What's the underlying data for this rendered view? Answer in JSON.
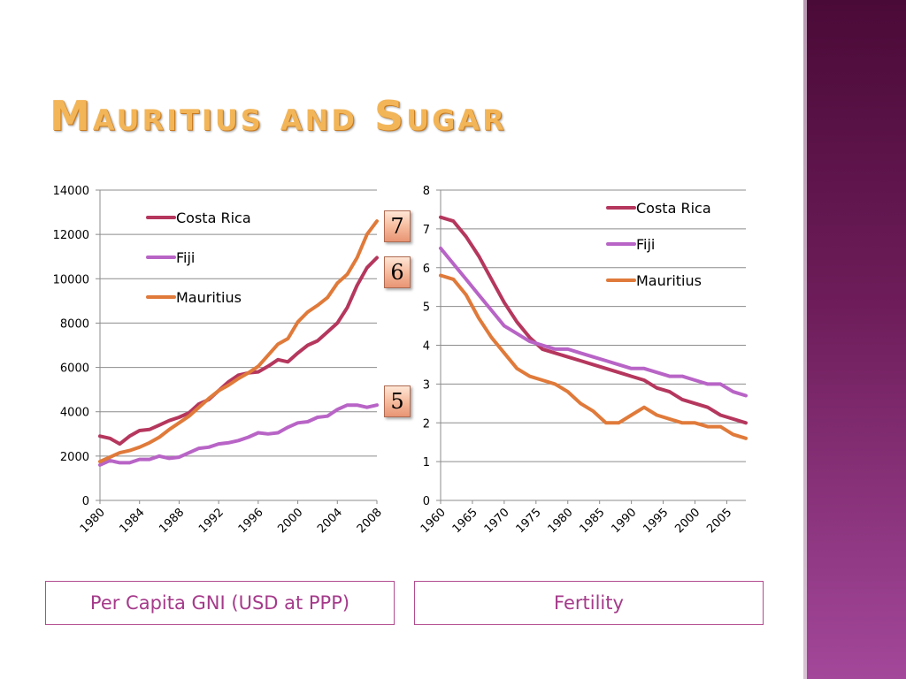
{
  "slide": {
    "title": "Mauritius and Sugar",
    "markers": [
      "7",
      "6",
      "5"
    ],
    "accent_colors": {
      "title": "#f2b558",
      "box_border": "#b24c8f",
      "box_text": "#a53a8a",
      "sidebar_top": "#4a0a37",
      "sidebar_bottom": "#a3479a"
    }
  },
  "chart_data": [
    {
      "type": "line",
      "label": "Per Capita GNI (USD at PPP)",
      "ylim": [
        0,
        14000
      ],
      "yticks": [
        0,
        2000,
        4000,
        6000,
        8000,
        10000,
        12000,
        14000
      ],
      "xlim": [
        1980,
        2008
      ],
      "xticks": [
        1980,
        1984,
        1988,
        1992,
        1996,
        2000,
        2004,
        2008
      ],
      "grid": true,
      "legend": "top-left",
      "x": [
        1980,
        1981,
        1982,
        1983,
        1984,
        1985,
        1986,
        1987,
        1988,
        1989,
        1990,
        1991,
        1992,
        1993,
        1994,
        1995,
        1996,
        1997,
        1998,
        1999,
        2000,
        2001,
        2002,
        2003,
        2004,
        2005,
        2006,
        2007,
        2008
      ],
      "series": [
        {
          "name": "Costa Rica",
          "color": "#b5375e",
          "values": [
            2900,
            2800,
            2550,
            2900,
            3150,
            3200,
            3400,
            3600,
            3750,
            3950,
            4350,
            4550,
            4950,
            5350,
            5650,
            5750,
            5800,
            6050,
            6350,
            6250,
            6650,
            7000,
            7200,
            7600,
            8000,
            8700,
            9700,
            10500,
            10950
          ]
        },
        {
          "name": "Fiji",
          "color": "#b864c6",
          "values": [
            1600,
            1800,
            1700,
            1700,
            1850,
            1850,
            2000,
            1900,
            1950,
            2150,
            2350,
            2400,
            2550,
            2600,
            2700,
            2850,
            3050,
            3000,
            3050,
            3300,
            3500,
            3550,
            3750,
            3800,
            4100,
            4300,
            4300,
            4200,
            4300
          ]
        },
        {
          "name": "Mauritius",
          "color": "#e07a3a",
          "values": [
            1750,
            1950,
            2150,
            2250,
            2400,
            2600,
            2850,
            3200,
            3500,
            3800,
            4200,
            4600,
            4950,
            5200,
            5500,
            5750,
            6050,
            6550,
            7050,
            7300,
            8050,
            8500,
            8800,
            9150,
            9800,
            10200,
            10950,
            12000,
            12600
          ]
        }
      ]
    },
    {
      "type": "line",
      "label": "Fertility",
      "ylim": [
        0,
        8
      ],
      "yticks": [
        0,
        1,
        2,
        3,
        4,
        5,
        6,
        7,
        8
      ],
      "xlim": [
        1960,
        2008
      ],
      "xticks": [
        1960,
        1965,
        1970,
        1975,
        1980,
        1985,
        1990,
        1995,
        2000,
        2005
      ],
      "grid": true,
      "legend": "top-right",
      "x": [
        1960,
        1962,
        1964,
        1966,
        1968,
        1970,
        1972,
        1974,
        1976,
        1978,
        1980,
        1982,
        1984,
        1986,
        1988,
        1990,
        1992,
        1994,
        1996,
        1998,
        2000,
        2002,
        2004,
        2006,
        2008
      ],
      "series": [
        {
          "name": "Costa Rica",
          "color": "#b5375e",
          "values": [
            7.3,
            7.2,
            6.8,
            6.3,
            5.7,
            5.1,
            4.6,
            4.2,
            3.9,
            3.8,
            3.7,
            3.6,
            3.5,
            3.4,
            3.3,
            3.2,
            3.1,
            2.9,
            2.8,
            2.6,
            2.5,
            2.4,
            2.2,
            2.1,
            2.0
          ]
        },
        {
          "name": "Fiji",
          "color": "#b864c6",
          "values": [
            6.5,
            6.1,
            5.7,
            5.3,
            4.9,
            4.5,
            4.3,
            4.1,
            4.0,
            3.9,
            3.9,
            3.8,
            3.7,
            3.6,
            3.5,
            3.4,
            3.4,
            3.3,
            3.2,
            3.2,
            3.1,
            3.0,
            3.0,
            2.8,
            2.7
          ]
        },
        {
          "name": "Mauritius",
          "color": "#e07a3a",
          "values": [
            5.8,
            5.7,
            5.3,
            4.7,
            4.2,
            3.8,
            3.4,
            3.2,
            3.1,
            3.0,
            2.8,
            2.5,
            2.3,
            2.0,
            2.0,
            2.2,
            2.4,
            2.2,
            2.1,
            2.0,
            2.0,
            1.9,
            1.9,
            1.7,
            1.6
          ]
        }
      ]
    }
  ]
}
